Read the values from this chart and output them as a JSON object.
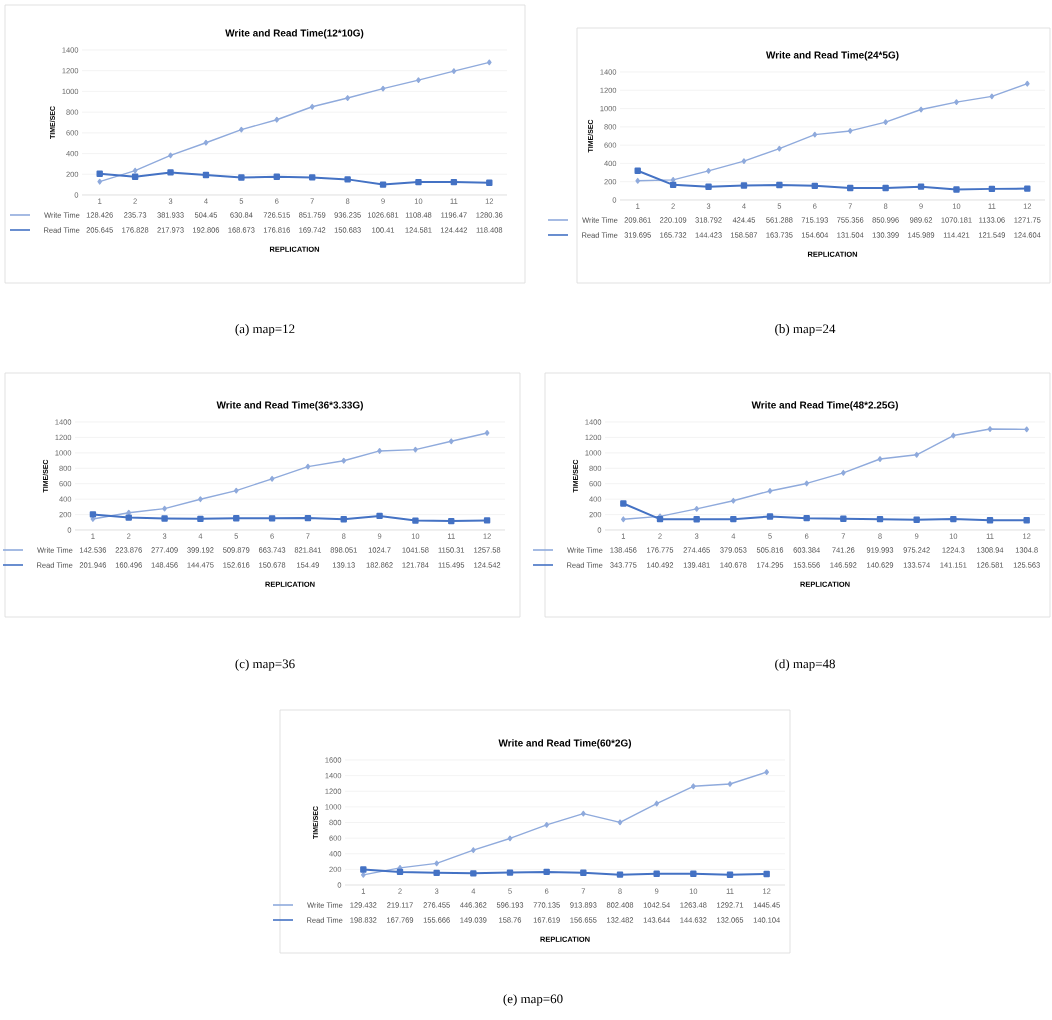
{
  "chart_data": [
    {
      "type": "line",
      "title": "Write and Read Time(12*10G)",
      "xlabel": "REPLICATION",
      "ylabel": "TIME/SEC",
      "categories": [
        "1",
        "2",
        "3",
        "4",
        "5",
        "6",
        "7",
        "8",
        "9",
        "10",
        "11",
        "12"
      ],
      "series": [
        {
          "name": "Write Time",
          "color": "#8faadc",
          "marker": "diamond",
          "values": [
            128.426,
            235.73,
            381.933,
            504.45,
            630.84,
            726.515,
            851.759,
            936.235,
            1026.681,
            1108.48,
            1196.47,
            1280.36
          ]
        },
        {
          "name": "Read Time",
          "color": "#4472c4",
          "marker": "square",
          "values": [
            205.645,
            176.828,
            217.973,
            192.806,
            168.673,
            176.816,
            169.742,
            150.683,
            100.41,
            124.581,
            124.442,
            118.408
          ]
        }
      ],
      "ylim": [
        0,
        1400
      ],
      "yticks": [
        0,
        200,
        400,
        600,
        800,
        1000,
        1200,
        1400
      ],
      "grid": "y",
      "legend": "bottom",
      "data_labels": true,
      "annotations": [
        "(a)  map=12"
      ]
    },
    {
      "type": "line",
      "title": "Write and Read Time(24*5G)",
      "xlabel": "REPLICATION",
      "ylabel": "TIME/SEC",
      "categories": [
        "1",
        "2",
        "3",
        "4",
        "5",
        "6",
        "7",
        "8",
        "9",
        "10",
        "11",
        "12"
      ],
      "series": [
        {
          "name": "Write Time",
          "color": "#8faadc",
          "marker": "diamond",
          "values": [
            209.861,
            220.109,
            318.792,
            424.45,
            561.288,
            715.193,
            755.356,
            850.996,
            989.62,
            1070.181,
            1133.06,
            1271.75
          ]
        },
        {
          "name": "Read Time",
          "color": "#4472c4",
          "marker": "square",
          "values": [
            319.695,
            165.732,
            144.423,
            158.587,
            163.735,
            154.604,
            131.504,
            130.399,
            145.989,
            114.421,
            121.549,
            124.604
          ]
        }
      ],
      "ylim": [
        0,
        1400
      ],
      "yticks": [
        0,
        200,
        400,
        600,
        800,
        1000,
        1200,
        1400
      ],
      "grid": "y",
      "legend": "bottom",
      "data_labels": true,
      "annotations": [
        "(b)  map=24"
      ]
    },
    {
      "type": "line",
      "title": "Write and Read Time(36*3.33G)",
      "xlabel": "REPLICATION",
      "ylabel": "TIME/SEC",
      "categories": [
        "1",
        "2",
        "3",
        "4",
        "5",
        "6",
        "7",
        "8",
        "9",
        "10",
        "11",
        "12"
      ],
      "series": [
        {
          "name": "Write Time",
          "color": "#8faadc",
          "marker": "diamond",
          "values": [
            142.536,
            223.876,
            277.409,
            399.192,
            509.879,
            663.743,
            821.841,
            898.051,
            1024.7,
            1041.58,
            1150.31,
            1257.58
          ]
        },
        {
          "name": "Read Time",
          "color": "#4472c4",
          "marker": "square",
          "values": [
            201.946,
            160.496,
            148.456,
            144.475,
            152.616,
            150.678,
            154.49,
            139.13,
            182.862,
            121.784,
            115.495,
            124.542
          ]
        }
      ],
      "ylim": [
        0,
        1400
      ],
      "yticks": [
        0,
        200,
        400,
        600,
        800,
        1000,
        1200,
        1400
      ],
      "grid": "y",
      "legend": "bottom",
      "data_labels": true,
      "annotations": [
        "(c)  map=36"
      ]
    },
    {
      "type": "line",
      "title": "Write and Read Time(48*2.25G)",
      "xlabel": "REPLICATION",
      "ylabel": "TIME/SEC",
      "categories": [
        "1",
        "2",
        "3",
        "4",
        "5",
        "6",
        "7",
        "8",
        "9",
        "10",
        "11",
        "12"
      ],
      "series": [
        {
          "name": "Write Time",
          "color": "#8faadc",
          "marker": "diamond",
          "values": [
            138.456,
            176.775,
            274.465,
            379.053,
            505.816,
            603.384,
            741.26,
            919.993,
            975.242,
            1224.3,
            1308.94,
            1304.8
          ]
        },
        {
          "name": "Read Time",
          "color": "#4472c4",
          "marker": "square",
          "values": [
            343.775,
            140.492,
            139.481,
            140.678,
            174.295,
            153.556,
            146.592,
            140.629,
            133.574,
            141.151,
            126.581,
            125.563
          ]
        }
      ],
      "ylim": [
        0,
        1400
      ],
      "yticks": [
        0,
        200,
        400,
        600,
        800,
        1000,
        1200,
        1400
      ],
      "grid": "y",
      "legend": "bottom",
      "data_labels": true,
      "annotations": [
        "(d)  map=48"
      ]
    },
    {
      "type": "line",
      "title": "Write and Read Time(60*2G)",
      "xlabel": "REPLICATION",
      "ylabel": "TIME/SEC",
      "categories": [
        "1",
        "2",
        "3",
        "4",
        "5",
        "6",
        "7",
        "8",
        "9",
        "10",
        "11",
        "12"
      ],
      "series": [
        {
          "name": "Write Time",
          "color": "#8faadc",
          "marker": "diamond",
          "values": [
            129.432,
            219.117,
            276.455,
            446.362,
            596.193,
            770.135,
            913.893,
            802.408,
            1042.54,
            1263.48,
            1292.71,
            1445.45
          ]
        },
        {
          "name": "Read Time",
          "color": "#4472c4",
          "marker": "square",
          "values": [
            198.832,
            167.769,
            155.666,
            149.039,
            158.76,
            167.619,
            156.655,
            132.482,
            143.644,
            144.632,
            132.065,
            140.104
          ]
        }
      ],
      "ylim": [
        0,
        1600
      ],
      "yticks": [
        0,
        200,
        400,
        600,
        800,
        1000,
        1200,
        1400,
        1600
      ],
      "grid": "y",
      "legend": "bottom",
      "data_labels": true,
      "annotations": [
        "(e)  map=60"
      ]
    }
  ]
}
